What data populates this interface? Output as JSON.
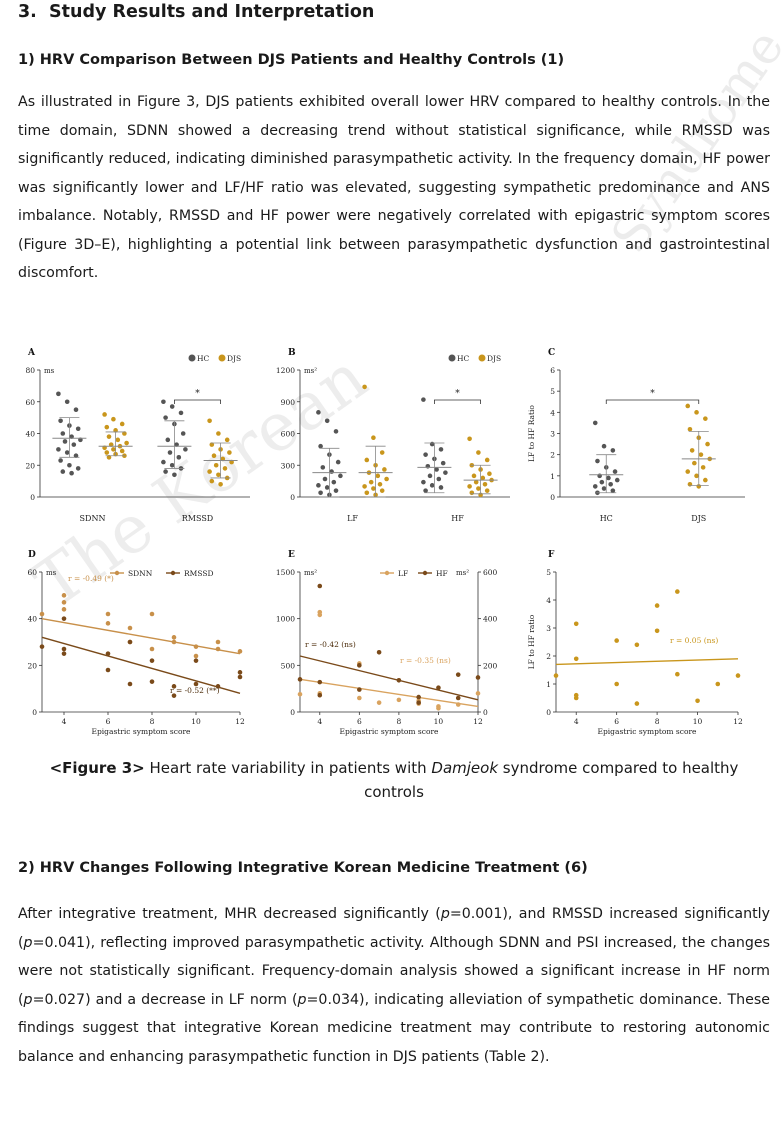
{
  "section": {
    "number": "3.",
    "title": "Study Results and Interpretation"
  },
  "sub1": {
    "number": "1)",
    "title": "HRV Comparison Between DJS Patients and Healthy Controls (1)"
  },
  "para1": "As illustrated in Figure 3, DJS patients exhibited overall lower HRV compared to healthy controls. In the time domain, SDNN showed a decreasing trend without statistical significance, while RMSSD was significantly reduced, indicating diminished parasympathetic activity. In the frequency domain, HF power was significantly lower and LF/HF ratio was elevated, suggesting sympathetic predominance and ANS imbalance. Notably, RMSSD and HF power were negatively correlated with epigastric symptom scores (Figure 3D–E), highlighting a potential link between parasympathetic dysfunction and gastrointestinal discomfort.",
  "caption": {
    "label": "<Figure 3>",
    "text_a": " Heart rate variability in patients with ",
    "italic": "Damjeok",
    "text_b": " syndrome compared to healthy controls"
  },
  "sub2": {
    "number": "2)",
    "title": "HRV Changes Following Integrative Korean Medicine Treatment (6)"
  },
  "para2": {
    "s1": "After integrative treatment, MHR decreased significantly (",
    "p": "p",
    "s2": "=0.001), and RMSSD increased significantly (",
    "s3": "=0.041), reflecting improved parasympathetic activity. Although SDNN and PSI increased, the changes were not statistically significant. Frequency-domain analysis showed a significant increase in HF norm (",
    "s4": "=0.027) and a decrease in LF norm (",
    "s5": "=0.034), indicating alleviation of sympathetic dominance. These findings suggest that integrative Korean medicine treatment may contribute to restoring autonomic balance and enhancing parasympathetic function in DJS patients (Table 2)."
  },
  "watermark": "The Korean",
  "watermark2": "Syndrome",
  "colors": {
    "hc": "#555555",
    "djs": "#c9961c",
    "lf": "#d9a35f",
    "hf": "#7a4a1a",
    "tan": "#c8904a"
  },
  "chart_data": [
    {
      "panel": "A",
      "type": "scatter",
      "unit": "ms",
      "ylim": [
        0,
        80
      ],
      "yticks": [
        0,
        20,
        40,
        60,
        80
      ],
      "legend": [
        "HC",
        "DJS"
      ],
      "categories": [
        "SDNN",
        "RMSSD"
      ],
      "significance": [
        "",
        "*"
      ],
      "groups": [
        {
          "cat": 0,
          "group": "HC",
          "mean": 37,
          "sd_low": 25,
          "sd_high": 50,
          "points": [
            65,
            60,
            55,
            48,
            45,
            43,
            40,
            38,
            36,
            35,
            33,
            30,
            28,
            26,
            23,
            20,
            18,
            16,
            15
          ]
        },
        {
          "cat": 0,
          "group": "DJS",
          "mean": 32,
          "sd_low": 26,
          "sd_high": 41,
          "points": [
            52,
            49,
            46,
            44,
            42,
            40,
            38,
            36,
            34,
            33,
            32,
            31,
            30,
            29,
            28,
            27,
            26,
            25
          ]
        },
        {
          "cat": 1,
          "group": "HC",
          "mean": 32,
          "sd_low": 18,
          "sd_high": 48,
          "points": [
            60,
            57,
            53,
            50,
            46,
            40,
            36,
            33,
            30,
            28,
            25,
            22,
            20,
            18,
            16,
            14
          ]
        },
        {
          "cat": 1,
          "group": "DJS",
          "mean": 23,
          "sd_low": 12,
          "sd_high": 34,
          "points": [
            48,
            40,
            36,
            33,
            30,
            28,
            26,
            24,
            22,
            20,
            18,
            16,
            14,
            12,
            10,
            8
          ]
        }
      ]
    },
    {
      "panel": "B",
      "type": "scatter",
      "unit": "ms²",
      "ylim": [
        0,
        1200
      ],
      "yticks": [
        0,
        300,
        600,
        900,
        1200
      ],
      "legend": [
        "HC",
        "DJS"
      ],
      "categories": [
        "LF",
        "HF"
      ],
      "significance": [
        "",
        "*"
      ],
      "groups": [
        {
          "cat": 0,
          "group": "HC",
          "mean": 230,
          "sd_low": 0,
          "sd_high": 460,
          "points": [
            800,
            720,
            620,
            480,
            400,
            330,
            280,
            240,
            200,
            170,
            140,
            110,
            90,
            60,
            40,
            20
          ]
        },
        {
          "cat": 0,
          "group": "DJS",
          "mean": 230,
          "sd_low": 0,
          "sd_high": 480,
          "points": [
            1040,
            560,
            420,
            350,
            300,
            260,
            230,
            200,
            170,
            140,
            120,
            100,
            80,
            60,
            40,
            20
          ]
        },
        {
          "cat": 1,
          "group": "HC",
          "mean": 280,
          "sd_low": 40,
          "sd_high": 510,
          "points": [
            920,
            500,
            450,
            400,
            360,
            320,
            290,
            260,
            230,
            200,
            170,
            140,
            110,
            90,
            60
          ]
        },
        {
          "cat": 1,
          "group": "DJS",
          "mean": 160,
          "sd_low": 30,
          "sd_high": 300,
          "points": [
            550,
            420,
            350,
            300,
            260,
            220,
            200,
            180,
            160,
            140,
            120,
            100,
            80,
            60,
            40,
            20
          ]
        }
      ]
    },
    {
      "panel": "C",
      "type": "scatter",
      "ylabel": "LF to HF Ratio",
      "ylim": [
        0,
        6
      ],
      "yticks": [
        0,
        1,
        2,
        3,
        4,
        5,
        6
      ],
      "categories": [
        "HC",
        "DJS"
      ],
      "significance": "*",
      "groups": [
        {
          "cat": 0,
          "group": "HC",
          "mean": 1.05,
          "sd_low": 0.2,
          "sd_high": 2.0,
          "points": [
            3.5,
            2.4,
            2.2,
            1.7,
            1.4,
            1.2,
            1.0,
            0.9,
            0.8,
            0.7,
            0.6,
            0.5,
            0.4,
            0.3,
            0.2
          ]
        },
        {
          "cat": 1,
          "group": "DJS",
          "mean": 1.8,
          "sd_low": 0.55,
          "sd_high": 3.1,
          "points": [
            4.3,
            4.0,
            3.7,
            3.2,
            2.8,
            2.5,
            2.2,
            2.0,
            1.8,
            1.6,
            1.4,
            1.2,
            1.0,
            0.8,
            0.6,
            0.5
          ]
        }
      ]
    },
    {
      "panel": "D",
      "type": "scatter",
      "unit": "ms",
      "xlabel": "Epigastric symptom score",
      "xlim": [
        3,
        12
      ],
      "xticks": [
        4,
        6,
        8,
        10,
        12
      ],
      "ylim": [
        0,
        60
      ],
      "yticks": [
        0,
        20,
        40,
        60
      ],
      "series": [
        {
          "name": "SDNN",
          "r": "r = -0.49 (*)",
          "line": [
            [
              3,
              40
            ],
            [
              12,
              25
            ]
          ],
          "points": [
            [
              3,
              42
            ],
            [
              4,
              50
            ],
            [
              4,
              47
            ],
            [
              4,
              44
            ],
            [
              6,
              42
            ],
            [
              6,
              38
            ],
            [
              7,
              36
            ],
            [
              7,
              30
            ],
            [
              8,
              42
            ],
            [
              8,
              27
            ],
            [
              9,
              32
            ],
            [
              9,
              30
            ],
            [
              10,
              28
            ],
            [
              10,
              24
            ],
            [
              11,
              30
            ],
            [
              11,
              27
            ],
            [
              12,
              26
            ]
          ]
        },
        {
          "name": "RMSSD",
          "r": "r = -0.52 (**)",
          "line": [
            [
              3,
              32
            ],
            [
              12,
              8
            ]
          ],
          "points": [
            [
              3,
              28
            ],
            [
              4,
              40
            ],
            [
              4,
              27
            ],
            [
              4,
              25
            ],
            [
              6,
              25
            ],
            [
              6,
              18
            ],
            [
              7,
              30
            ],
            [
              7,
              12
            ],
            [
              8,
              13
            ],
            [
              8,
              22
            ],
            [
              9,
              11
            ],
            [
              9,
              7
            ],
            [
              10,
              22
            ],
            [
              10,
              12
            ],
            [
              11,
              11
            ],
            [
              12,
              15
            ],
            [
              12,
              17
            ]
          ]
        }
      ]
    },
    {
      "panel": "E",
      "type": "scatter",
      "unit_left": "ms²",
      "unit_right": "ms²",
      "xlabel": "Epigastric symptom score",
      "xlim": [
        3,
        12
      ],
      "xticks": [
        4,
        6,
        8,
        10,
        12
      ],
      "ylim_left": [
        0,
        1500
      ],
      "yticks_left": [
        0,
        500,
        1000,
        1500
      ],
      "ylim_right": [
        0,
        600
      ],
      "yticks_right": [
        0,
        200,
        400,
        600
      ],
      "series": [
        {
          "name": "LF",
          "r": "r = -0.35 (ns)",
          "line": [
            [
              3,
              350
            ],
            [
              12,
              60
            ]
          ],
          "points": [
            [
              3,
              190
            ],
            [
              4,
              1070
            ],
            [
              4,
              1040
            ],
            [
              4,
              200
            ],
            [
              6,
              520
            ],
            [
              6,
              150
            ],
            [
              7,
              100
            ],
            [
              8,
              130
            ],
            [
              9,
              120
            ],
            [
              9,
              90
            ],
            [
              10,
              60
            ],
            [
              10,
              40
            ],
            [
              11,
              80
            ],
            [
              12,
              200
            ]
          ]
        },
        {
          "name": "HF",
          "r": "r = -0.42 (ns)",
          "line": [
            [
              3,
              600
            ],
            [
              12,
              130
            ]
          ],
          "points": [
            [
              3,
              350
            ],
            [
              4,
              1350
            ],
            [
              4,
              320
            ],
            [
              4,
              180
            ],
            [
              6,
              500
            ],
            [
              6,
              240
            ],
            [
              7,
              640
            ],
            [
              8,
              340
            ],
            [
              9,
              160
            ],
            [
              9,
              100
            ],
            [
              10,
              260
            ],
            [
              11,
              150
            ],
            [
              11,
              400
            ],
            [
              12,
              370
            ]
          ]
        }
      ]
    },
    {
      "panel": "F",
      "type": "scatter",
      "ylabel": "LF to HF ratio",
      "xlabel": "Epigastric symptom score",
      "xlim": [
        3,
        12
      ],
      "xticks": [
        4,
        6,
        8,
        10,
        12
      ],
      "ylim": [
        0,
        5
      ],
      "yticks": [
        0,
        1,
        2,
        3,
        4,
        5
      ],
      "r": "r = 0.05 (ns)",
      "line": [
        [
          3,
          1.7
        ],
        [
          12,
          1.9
        ]
      ],
      "points": [
        [
          3,
          1.3
        ],
        [
          4,
          3.15
        ],
        [
          4,
          1.9
        ],
        [
          4,
          0.6
        ],
        [
          4,
          0.5
        ],
        [
          6,
          2.55
        ],
        [
          6,
          1.0
        ],
        [
          7,
          2.4
        ],
        [
          7,
          0.3
        ],
        [
          8,
          3.8
        ],
        [
          8,
          2.9
        ],
        [
          9,
          4.3
        ],
        [
          9,
          1.35
        ],
        [
          10,
          0.4
        ],
        [
          11,
          1.0
        ],
        [
          12,
          1.3
        ]
      ]
    }
  ]
}
